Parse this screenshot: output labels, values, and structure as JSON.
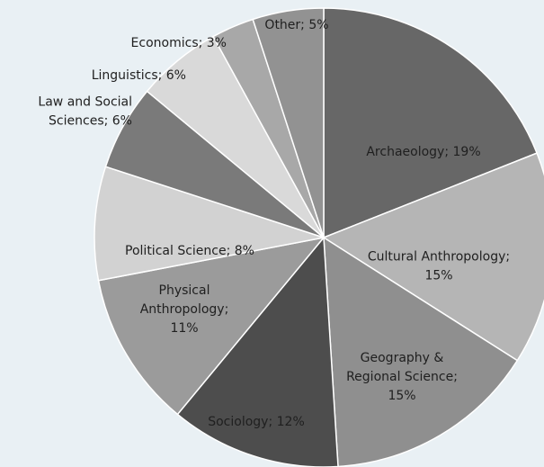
{
  "chart_data": {
    "type": "pie",
    "title": "",
    "slices": [
      {
        "label_lines": [
          "Archaeology; 19%"
        ],
        "value": 19,
        "color": "#676767"
      },
      {
        "label_lines": [
          "Cultural Anthropology;",
          "15%"
        ],
        "value": 15,
        "color": "#b5b5b5"
      },
      {
        "label_lines": [
          "Geography &",
          "Regional Science;",
          "15%"
        ],
        "value": 15,
        "color": "#8f8f8f"
      },
      {
        "label_lines": [
          "Sociology; 12%"
        ],
        "value": 12,
        "color": "#4d4d4d"
      },
      {
        "label_lines": [
          "Physical",
          "Anthropology;",
          "11%"
        ],
        "value": 11,
        "color": "#9b9b9b"
      },
      {
        "label_lines": [
          "Political Science; 8%"
        ],
        "value": 8,
        "color": "#d2d2d2"
      },
      {
        "label_lines": [
          "Law and Social",
          "Sciences; 6%"
        ],
        "value": 6,
        "color": "#7a7a7a"
      },
      {
        "label_lines": [
          "Linguistics; 6%"
        ],
        "value": 6,
        "color": "#d9d9d9"
      },
      {
        "label_lines": [
          "Economics; 3%"
        ],
        "value": 3,
        "color": "#a8a8a8"
      },
      {
        "label_lines": [
          "Other; 5%"
        ],
        "value": 5,
        "color": "#929292"
      }
    ]
  }
}
